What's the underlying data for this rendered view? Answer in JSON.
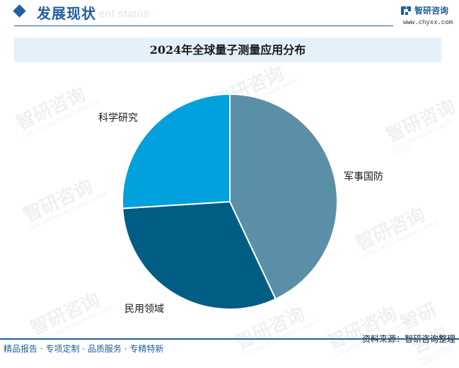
{
  "header": {
    "section_title": "发展现状",
    "section_subtitle": "ent status",
    "brand_name": "智研咨询",
    "brand_url": "www.chyxx.com"
  },
  "watermark": {
    "text": "智研咨询",
    "sub": "INTELLIGENCE RESEARCH GROUP"
  },
  "chart_data": {
    "type": "pie",
    "title": "2024年全球量子测量应用分布",
    "categories": [
      "军事国防",
      "民用领域",
      "科学研究"
    ],
    "values": [
      43,
      31,
      26
    ],
    "colors": [
      "#5b8fa8",
      "#005e84",
      "#00a1dc"
    ]
  },
  "footer": {
    "left": "精品报告 · 专项定制 · 品质服务 · 专精特新",
    "source": "资料来源：智研咨询整理"
  }
}
